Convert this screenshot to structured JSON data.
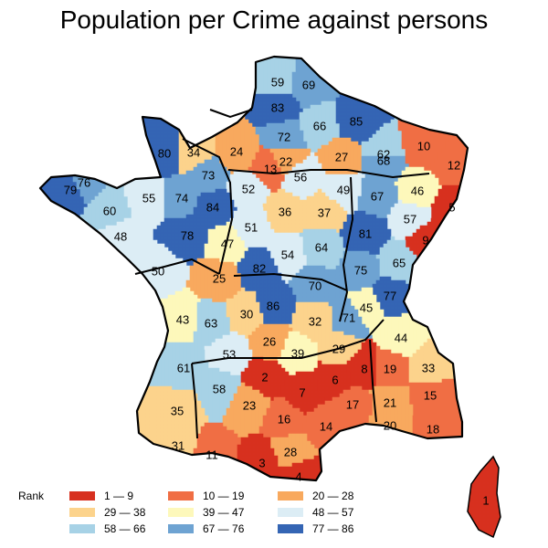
{
  "title": "Population per Crime against persons",
  "legend": {
    "title": "Rank",
    "classes": [
      {
        "range": "1 — 9",
        "color": "#d7301f"
      },
      {
        "range": "10 — 19",
        "color": "#f06e44"
      },
      {
        "range": "20 — 28",
        "color": "#f8a95e"
      },
      {
        "range": "29 — 38",
        "color": "#fcd38c"
      },
      {
        "range": "39 — 47",
        "color": "#fdf8bb"
      },
      {
        "range": "48 — 57",
        "color": "#dcedf5"
      },
      {
        "range": "58 — 66",
        "color": "#a7d2e6"
      },
      {
        "range": "67 — 76",
        "color": "#6ea3d2"
      },
      {
        "range": "77 — 86",
        "color": "#3465b4"
      }
    ]
  },
  "departments": [
    {
      "rank": "59"
    },
    {
      "rank": "69"
    },
    {
      "rank": "83"
    },
    {
      "rank": "66"
    },
    {
      "rank": "85"
    },
    {
      "rank": "80"
    },
    {
      "rank": "34"
    },
    {
      "rank": "24"
    },
    {
      "rank": "72"
    },
    {
      "rank": "13"
    },
    {
      "rank": "22"
    },
    {
      "rank": "27"
    },
    {
      "rank": "62"
    },
    {
      "rank": "68"
    },
    {
      "rank": "10"
    },
    {
      "rank": "12"
    },
    {
      "rank": "79"
    },
    {
      "rank": "76"
    },
    {
      "rank": "73"
    },
    {
      "rank": "52"
    },
    {
      "rank": "56"
    },
    {
      "rank": "49"
    },
    {
      "rank": "67"
    },
    {
      "rank": "46"
    },
    {
      "rank": "5"
    },
    {
      "rank": "60"
    },
    {
      "rank": "55"
    },
    {
      "rank": "74"
    },
    {
      "rank": "84"
    },
    {
      "rank": "36"
    },
    {
      "rank": "37"
    },
    {
      "rank": "57"
    },
    {
      "rank": "48"
    },
    {
      "rank": "78"
    },
    {
      "rank": "47"
    },
    {
      "rank": "51"
    },
    {
      "rank": "54"
    },
    {
      "rank": "64"
    },
    {
      "rank": "81"
    },
    {
      "rank": "9"
    },
    {
      "rank": "50"
    },
    {
      "rank": "25"
    },
    {
      "rank": "82"
    },
    {
      "rank": "75"
    },
    {
      "rank": "65"
    },
    {
      "rank": "70"
    },
    {
      "rank": "86"
    },
    {
      "rank": "77"
    },
    {
      "rank": "45"
    },
    {
      "rank": "43"
    },
    {
      "rank": "63"
    },
    {
      "rank": "30"
    },
    {
      "rank": "32"
    },
    {
      "rank": "71"
    },
    {
      "rank": "44"
    },
    {
      "rank": "26"
    },
    {
      "rank": "39"
    },
    {
      "rank": "29"
    },
    {
      "rank": "53"
    },
    {
      "rank": "61"
    },
    {
      "rank": "58"
    },
    {
      "rank": "2"
    },
    {
      "rank": "7"
    },
    {
      "rank": "6"
    },
    {
      "rank": "8"
    },
    {
      "rank": "19"
    },
    {
      "rank": "33"
    },
    {
      "rank": "15"
    },
    {
      "rank": "35"
    },
    {
      "rank": "23"
    },
    {
      "rank": "16"
    },
    {
      "rank": "17"
    },
    {
      "rank": "21"
    },
    {
      "rank": "20"
    },
    {
      "rank": "18"
    },
    {
      "rank": "14"
    },
    {
      "rank": "31"
    },
    {
      "rank": "11"
    },
    {
      "rank": "28"
    },
    {
      "rank": "3"
    },
    {
      "rank": "4"
    },
    {
      "rank": "1"
    }
  ]
}
